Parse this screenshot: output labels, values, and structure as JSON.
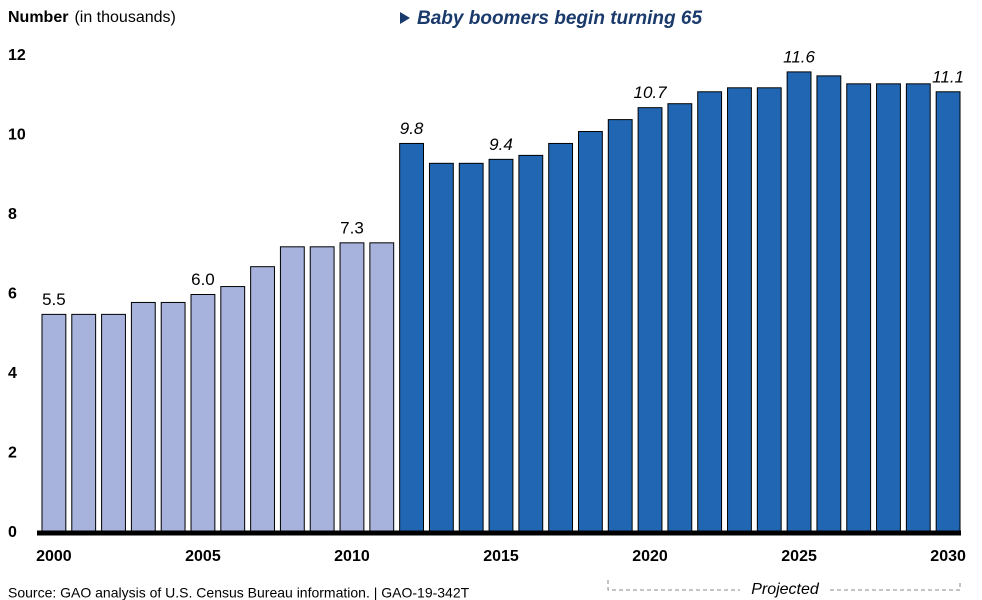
{
  "chart_data": {
    "type": "bar",
    "ylabel": "Number",
    "ylabel_note": "(in thousands)",
    "annotation": "Baby boomers begin turning 65",
    "projected_label": "Projected",
    "source": "Source: GAO analysis of U.S. Census Bureau information.  |  GAO-19-342T",
    "categories": [
      2000,
      null,
      null,
      null,
      null,
      2005,
      null,
      null,
      null,
      null,
      2010,
      null,
      null,
      null,
      null,
      2015,
      null,
      null,
      null,
      null,
      2020,
      null,
      null,
      null,
      null,
      2025,
      null,
      null,
      null,
      null,
      2030
    ],
    "values": [
      5.5,
      5.5,
      5.5,
      5.8,
      5.8,
      6.0,
      6.2,
      6.7,
      7.2,
      7.2,
      7.3,
      7.3,
      9.8,
      9.3,
      9.3,
      9.4,
      9.5,
      9.8,
      10.1,
      10.4,
      10.7,
      10.8,
      11.1,
      11.2,
      11.2,
      11.6,
      11.5,
      11.3,
      11.3,
      11.3,
      11.1
    ],
    "value_labels": [
      "5.5",
      null,
      null,
      null,
      null,
      "6.0",
      null,
      null,
      null,
      null,
      "7.3",
      null,
      "9.8",
      null,
      null,
      "9.4",
      null,
      null,
      null,
      null,
      "10.7",
      null,
      null,
      null,
      null,
      "11.6",
      null,
      null,
      null,
      null,
      "11.1"
    ],
    "colors": [
      "#a7b3dc",
      "#a7b3dc",
      "#a7b3dc",
      "#a7b3dc",
      "#a7b3dc",
      "#a7b3dc",
      "#a7b3dc",
      "#a7b3dc",
      "#a7b3dc",
      "#a7b3dc",
      "#a7b3dc",
      "#a7b3dc",
      "#2166b3",
      "#2166b3",
      "#2166b3",
      "#2166b3",
      "#2166b3",
      "#2166b3",
      "#2166b3",
      "#2166b3",
      "#2166b3",
      "#2166b3",
      "#2166b3",
      "#2166b3",
      "#2166b3",
      "#2166b3",
      "#2166b3",
      "#2166b3",
      "#2166b3",
      "#2166b3",
      "#2166b3"
    ],
    "ylim": [
      0,
      12
    ],
    "yticks": [
      0,
      2,
      4,
      6,
      8,
      10,
      12
    ],
    "grid": false
  }
}
